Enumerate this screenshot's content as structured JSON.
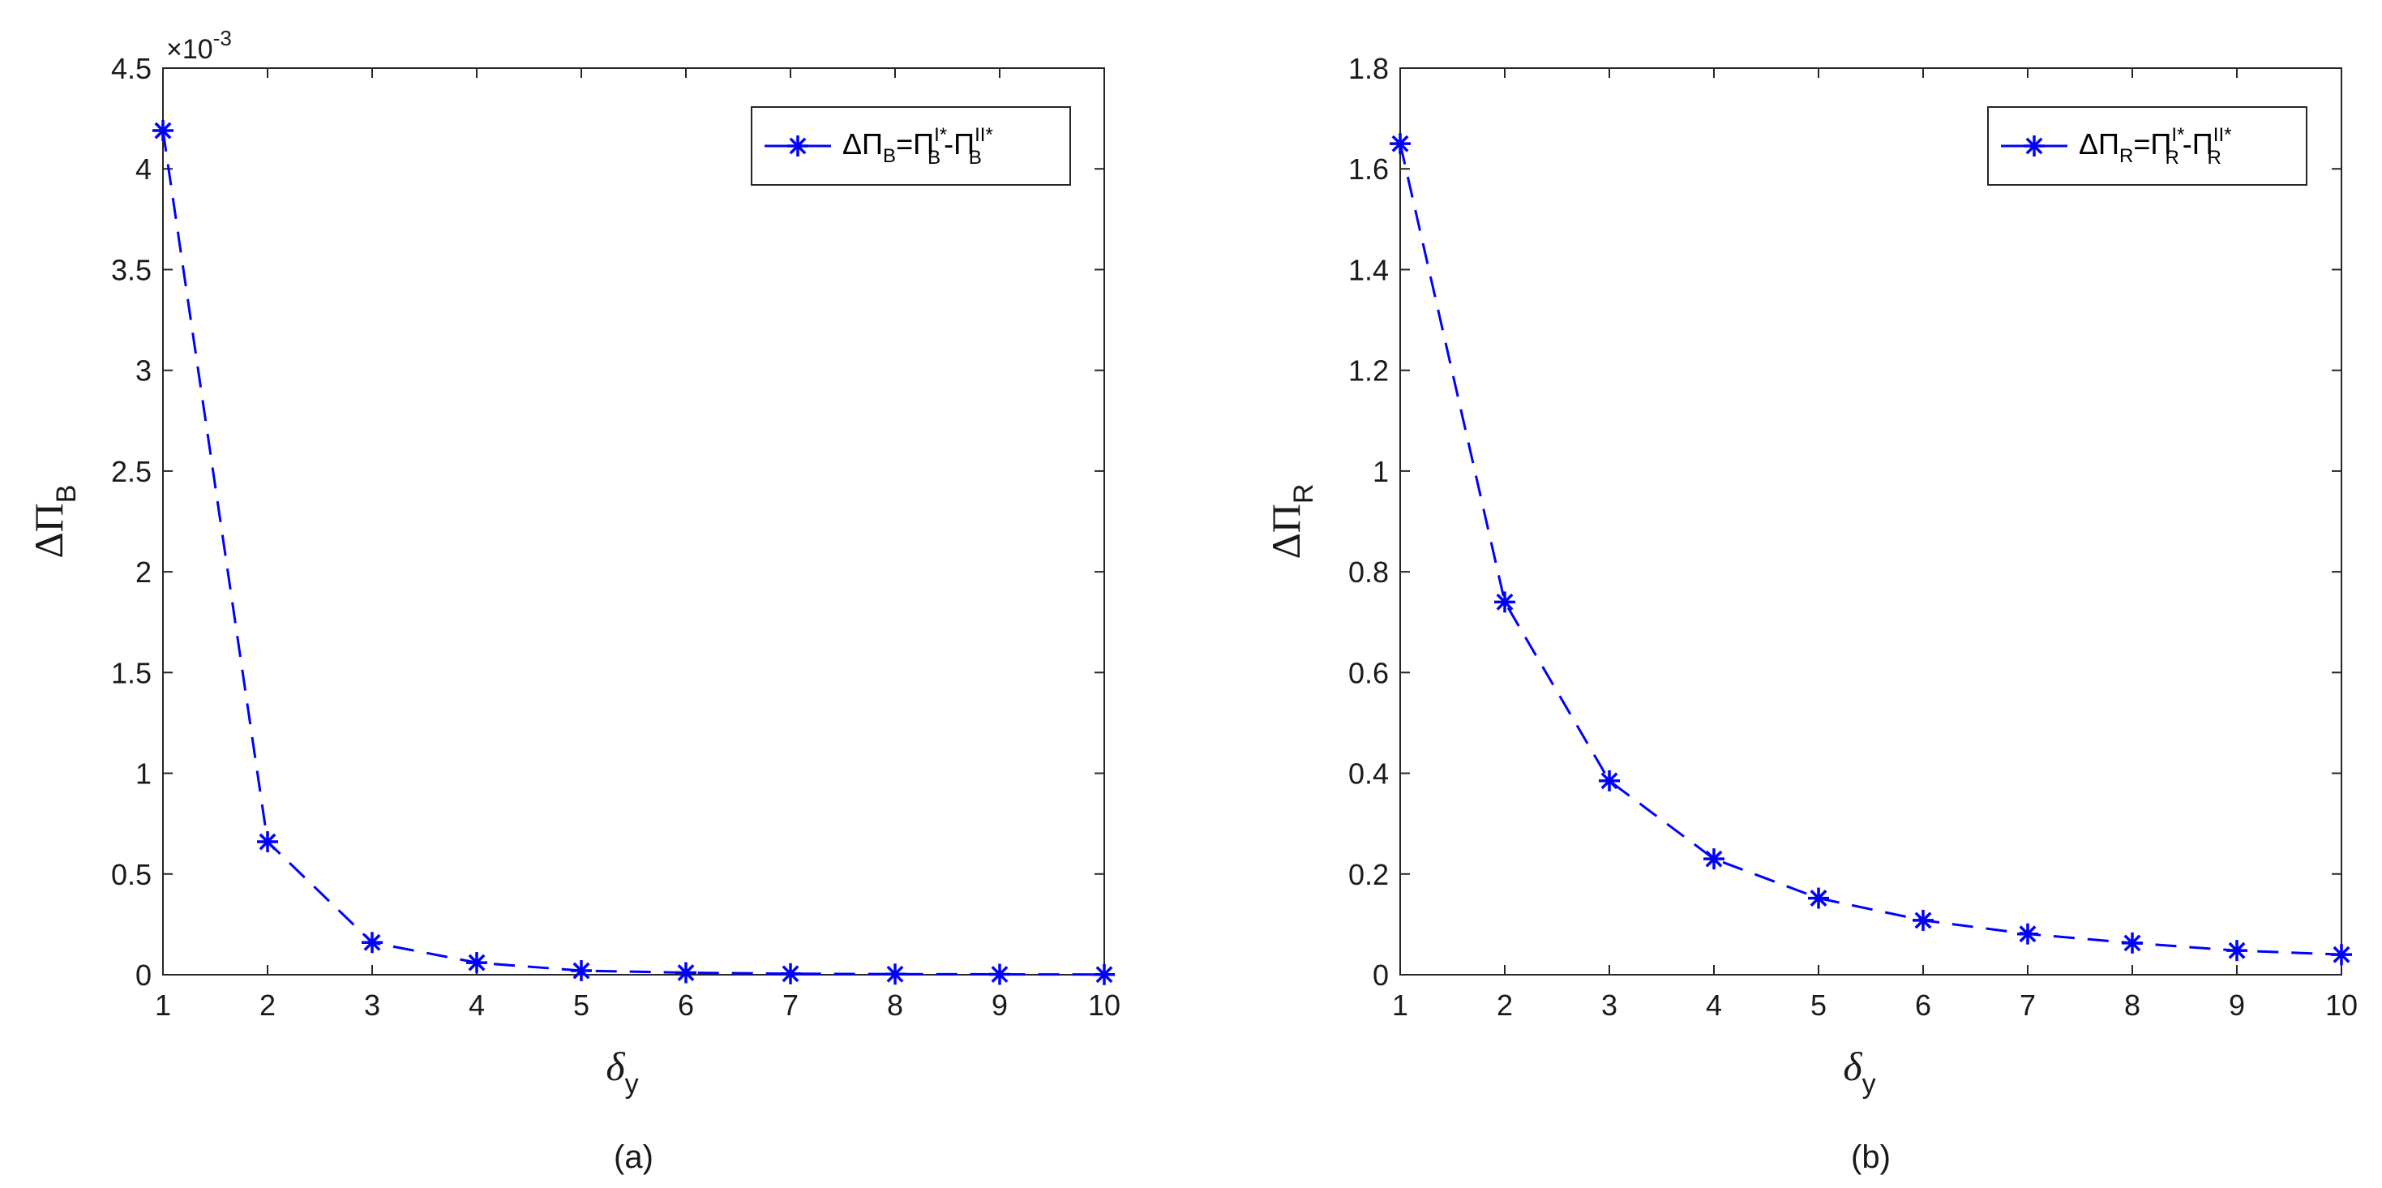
{
  "colors": {
    "series": "#0000ff",
    "axis": "#262626",
    "text": "#1a1a1a",
    "background": "#ffffff"
  },
  "chart_data": [
    {
      "type": "line",
      "caption": "(a)",
      "xlabel": {
        "main": "δ",
        "sub": "y"
      },
      "ylabel": {
        "main": "ΔΠ",
        "sub": "B"
      },
      "exponent": {
        "base": "×10",
        "power": "-3"
      },
      "x": [
        1,
        2,
        3,
        4,
        5,
        6,
        7,
        8,
        9,
        10
      ],
      "xlim": [
        1,
        10
      ],
      "xticks": [
        "1",
        "2",
        "3",
        "4",
        "5",
        "6",
        "7",
        "8",
        "9",
        "10"
      ],
      "ylim": [
        0,
        4.5
      ],
      "yticks": [
        "0",
        "0.5",
        "1",
        "1.5",
        "2",
        "2.5",
        "3",
        "3.5",
        "4",
        "4.5"
      ],
      "grid": false,
      "legend_position": "top-right",
      "line_style": "dashed",
      "marker": "asterisk",
      "series": [
        {
          "values": [
            4.19,
            0.66,
            0.16,
            0.06,
            0.02,
            0.01,
            0.005,
            0.003,
            0.002,
            0.001
          ],
          "legend": {
            "lhs": "ΔΠ",
            "lhs_sub": "B",
            "eq": "=",
            "t1": "Π",
            "t1_sup": "I*",
            "t1_sub": "B",
            "minus": "-",
            "t2": "Π",
            "t2_sup": "II*",
            "t2_sub": "B"
          }
        }
      ]
    },
    {
      "type": "line",
      "caption": "(b)",
      "xlabel": {
        "main": "δ",
        "sub": "y"
      },
      "ylabel": {
        "main": "ΔΠ",
        "sub": "R"
      },
      "x": [
        1,
        2,
        3,
        4,
        5,
        6,
        7,
        8,
        9,
        10
      ],
      "xlim": [
        1,
        10
      ],
      "xticks": [
        "1",
        "2",
        "3",
        "4",
        "5",
        "6",
        "7",
        "8",
        "9",
        "10"
      ],
      "ylim": [
        0,
        1.8
      ],
      "yticks": [
        "0",
        "0.2",
        "0.4",
        "0.6",
        "0.8",
        "1",
        "1.2",
        "1.4",
        "1.6",
        "1.8"
      ],
      "grid": false,
      "legend_position": "top-right",
      "line_style": "dashed",
      "marker": "asterisk",
      "series": [
        {
          "values": [
            1.65,
            0.74,
            0.385,
            0.23,
            0.152,
            0.108,
            0.081,
            0.063,
            0.048,
            0.04
          ],
          "legend": {
            "lhs": "ΔΠ",
            "lhs_sub": "R",
            "eq": "=",
            "t1": "Π",
            "t1_sup": "I*",
            "t1_sub": "R",
            "minus": "-",
            "t2": "Π",
            "t2_sup": "II*",
            "t2_sub": "R"
          }
        }
      ]
    }
  ]
}
